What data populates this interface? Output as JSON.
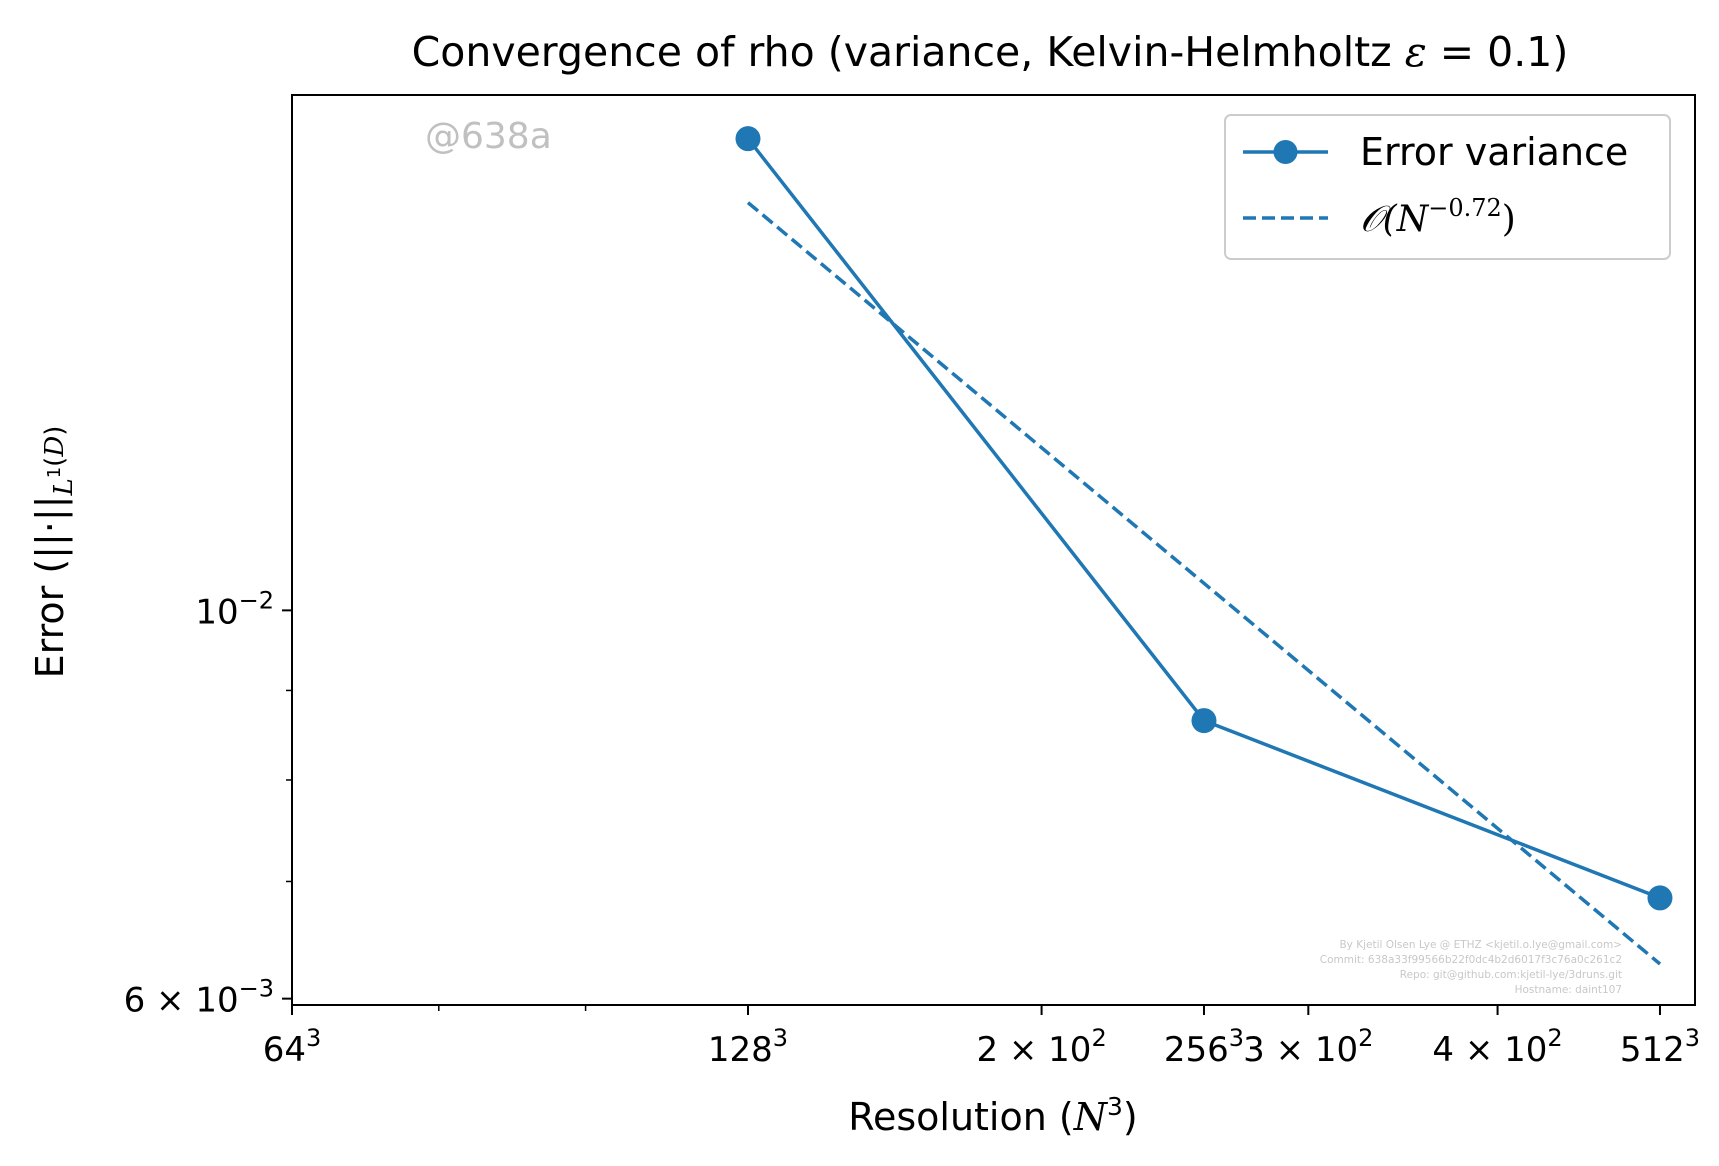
{
  "chart_data": {
    "type": "line",
    "title": "Convergence of rho (variance, Kelvin-Helmholtz ε = 0.1)",
    "xlabel": "Resolution (N³)",
    "ylabel": "Error (||·||L¹(D))",
    "x_scale": "log",
    "y_scale": "log",
    "xlim": [
      64,
      540
    ],
    "ylim": [
      0.00595,
      0.0197
    ],
    "x_ticks": [
      {
        "value": 64,
        "base": "64",
        "sup": "3"
      },
      {
        "value": 128,
        "base": "128",
        "sup": "3"
      },
      {
        "value": 200,
        "base": "2 × 10",
        "sup": "2"
      },
      {
        "value": 256,
        "base": "256",
        "sup": "3"
      },
      {
        "value": 300,
        "base": "3 × 10",
        "sup": "2"
      },
      {
        "value": 400,
        "base": "4 × 10",
        "sup": "2"
      },
      {
        "value": 512,
        "base": "512",
        "sup": "3"
      }
    ],
    "x_minor_ticks": [
      80,
      100
    ],
    "y_ticks": [
      {
        "value": 0.01,
        "base": "10",
        "sup": "−2"
      },
      {
        "value": 0.006,
        "base": "6 × 10",
        "sup": "−3"
      }
    ],
    "y_minor_ticks": [
      0.007,
      0.008,
      0.009
    ],
    "series": [
      {
        "name": "Error variance",
        "style": "solid-marker",
        "x": [
          128,
          256,
          512
        ],
        "y": [
          0.0186,
          0.00865,
          0.00685
        ]
      },
      {
        "name": "𝒪(N−0.72)",
        "style": "dashed",
        "x": [
          128,
          512
        ],
        "y": [
          0.0171,
          0.00628
        ]
      }
    ],
    "legend": {
      "position": "top-right",
      "entries": [
        {
          "label": "Error variance"
        },
        {
          "label_base": "𝒪(N",
          "label_sup": "−0.72",
          "label_close": ")"
        }
      ]
    },
    "grid": false,
    "color": "#1f77b4"
  },
  "watermark": "@638a",
  "footer_lines": [
    "By Kjetil Olsen Lye @ ETHZ <kjetil.o.lye@gmail.com>",
    "Commit: 638a33f99566b22f0dc4b2d6017f3c76a0c261c2",
    "Repo: git@github.com:kjetil-lye/3druns.git",
    "Hostname: daint107"
  ]
}
